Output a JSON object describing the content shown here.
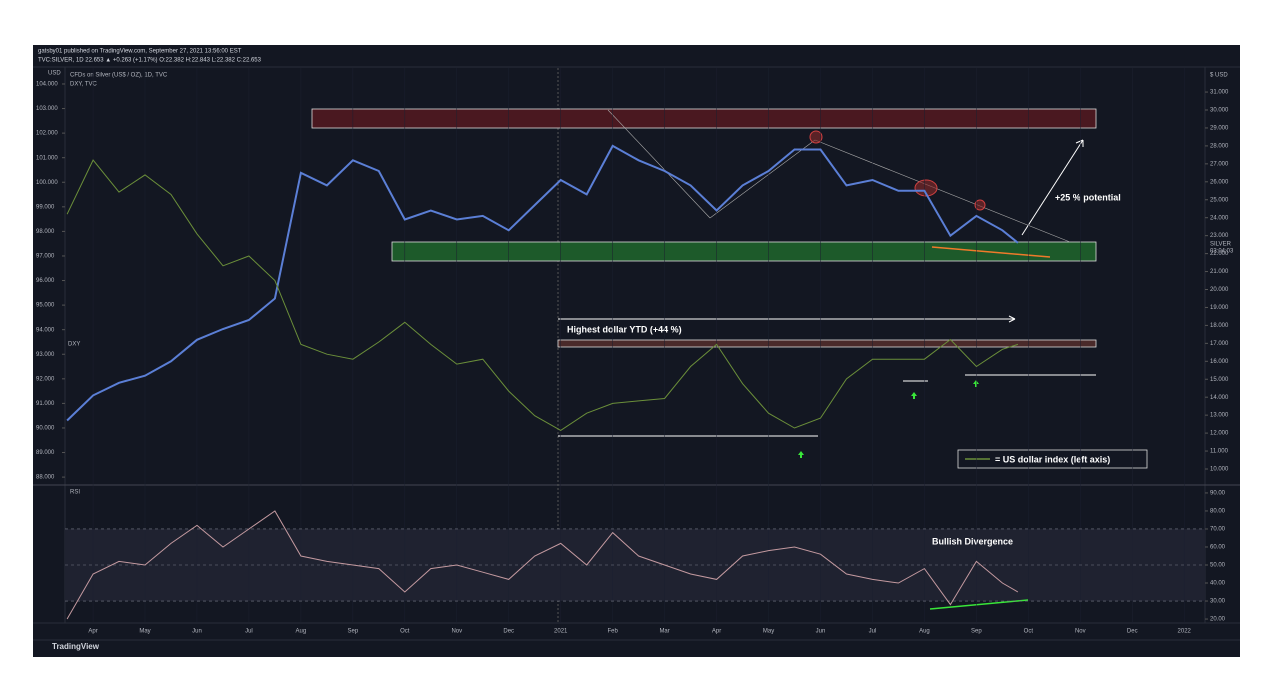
{
  "header": [
    "gatsby01 published on TradingView.com, September 27, 2021 13:56:00 EST",
    "TVC:SILVER, 1D 22.653 ▲ +0.263 (+1.17%) O:22.382 H:22.843 L:22.382 C:22.653"
  ],
  "footer": "TradingView",
  "chart_data": [
    {
      "type": "line",
      "subtitle": [
        "CFDs on Silver (US$ / OZ), 1D, TVC",
        "DXY, TVC"
      ],
      "ylabel": "USD",
      "y2label": "$ USD",
      "countdown": "03:04:03",
      "annotations": [
        "+25 % potential",
        "Highest dollar YTD (+44 %)",
        "= US dollar index (left axis)"
      ],
      "xlim": [
        -0.54,
        21.4
      ],
      "xticks": [
        {
          "value": 0,
          "label": "Apr"
        },
        {
          "value": 1,
          "label": "May"
        },
        {
          "value": 2,
          "label": "Jun"
        },
        {
          "value": 3,
          "label": "Jul"
        },
        {
          "value": 4,
          "label": "Aug"
        },
        {
          "value": 5,
          "label": "Sep"
        },
        {
          "value": 6,
          "label": "Oct"
        },
        {
          "value": 7,
          "label": "Nov"
        },
        {
          "value": 8,
          "label": "Dec"
        },
        {
          "value": 9,
          "label": "2021"
        },
        {
          "value": 10,
          "label": "Feb"
        },
        {
          "value": 11,
          "label": "Mar"
        },
        {
          "value": 12,
          "label": "Apr"
        },
        {
          "value": 13,
          "label": "May"
        },
        {
          "value": 14,
          "label": "Jun"
        },
        {
          "value": 15,
          "label": "Jul"
        },
        {
          "value": 16,
          "label": "Aug"
        },
        {
          "value": 17,
          "label": "Sep"
        },
        {
          "value": 18,
          "label": "Oct"
        },
        {
          "value": 19,
          "label": "Nov"
        },
        {
          "value": 20,
          "label": "Dec"
        },
        {
          "value": 21,
          "label": "2022"
        }
      ],
      "ylim": [
        87.76,
        104.65
      ],
      "yticks": [
        {
          "value": 104,
          "label": "104.000"
        },
        {
          "value": 103,
          "label": "103.000"
        },
        {
          "value": 102,
          "label": "102.000"
        },
        {
          "value": 101,
          "label": "101.000"
        },
        {
          "value": 100,
          "label": "100.000"
        },
        {
          "value": 99,
          "label": "99.000"
        },
        {
          "value": 98,
          "label": "98.000"
        },
        {
          "value": 97,
          "label": "97.000"
        },
        {
          "value": 96,
          "label": "96.000"
        },
        {
          "value": 95,
          "label": "95.000"
        },
        {
          "value": 94,
          "label": "94.000"
        },
        {
          "value": 93,
          "label": "93.000"
        },
        {
          "value": 92,
          "label": "92.000"
        },
        {
          "value": 91,
          "label": "91.000"
        },
        {
          "value": 90,
          "label": "90.000"
        },
        {
          "value": 89,
          "label": "89.000"
        },
        {
          "value": 88,
          "label": "88.000"
        }
      ],
      "y2lim": [
        9.22,
        32.34
      ],
      "y2ticks": [
        {
          "value": 31,
          "label": "31.000"
        },
        {
          "value": 30,
          "label": "30.000"
        },
        {
          "value": 29,
          "label": "29.000"
        },
        {
          "value": 28,
          "label": "28.000"
        },
        {
          "value": 27,
          "label": "27.000"
        },
        {
          "value": 26,
          "label": "26.000"
        },
        {
          "value": 25,
          "label": "25.000"
        },
        {
          "value": 24,
          "label": "24.000"
        },
        {
          "value": 23,
          "label": "23.000"
        },
        {
          "value": 22,
          "label": "22.000"
        },
        {
          "value": 21,
          "label": "21.000"
        },
        {
          "value": 20,
          "label": "20.000"
        },
        {
          "value": 19,
          "label": "19.000"
        },
        {
          "value": 18,
          "label": "18.000"
        },
        {
          "value": 17,
          "label": "17.000"
        },
        {
          "value": 16,
          "label": "16.000"
        },
        {
          "value": 15,
          "label": "15.000"
        },
        {
          "value": 14,
          "label": "14.000"
        },
        {
          "value": 13,
          "label": "13.000"
        },
        {
          "value": 12,
          "label": "12.000"
        },
        {
          "value": 11,
          "label": "11.000"
        },
        {
          "value": 10,
          "label": "10.000"
        }
      ],
      "x": [
        -0.5,
        0,
        0.5,
        1,
        1.5,
        2,
        2.5,
        3,
        3.5,
        4,
        4.5,
        5,
        5.5,
        6,
        6.5,
        7,
        7.5,
        8,
        8.5,
        9,
        9.5,
        10,
        10.5,
        11,
        11.5,
        12,
        12.5,
        13,
        13.5,
        14,
        14.5,
        15,
        15.5,
        16,
        16.5,
        17,
        17.5,
        17.8
      ],
      "series": [
        {
          "name": "SILVER",
          "color": "#5b7fd6",
          "axis": "y2",
          "values": [
            12.7,
            14.1,
            14.8,
            15.2,
            16.0,
            17.2,
            17.8,
            18.3,
            19.5,
            26.5,
            25.8,
            27.2,
            26.6,
            23.9,
            24.4,
            23.9,
            24.1,
            23.3,
            24.7,
            26.1,
            25.3,
            28.0,
            27.2,
            26.6,
            25.8,
            24.4,
            25.8,
            26.6,
            27.8,
            27.8,
            25.8,
            26.1,
            25.5,
            25.5,
            23.0,
            24.1,
            23.3,
            22.6
          ]
        },
        {
          "name": "DXY",
          "color": "#6b8f3a",
          "axis": "y",
          "values": [
            98.7,
            100.9,
            99.6,
            100.3,
            99.5,
            97.9,
            96.6,
            97.0,
            96.0,
            93.4,
            93.0,
            92.8,
            93.5,
            94.3,
            93.4,
            92.6,
            92.8,
            91.5,
            90.5,
            89.9,
            90.6,
            91.0,
            91.1,
            91.2,
            92.5,
            93.4,
            91.8,
            90.6,
            90.0,
            90.4,
            92.0,
            92.8,
            92.8,
            92.8,
            93.6,
            92.5,
            93.2,
            93.4
          ]
        }
      ]
    },
    {
      "type": "line",
      "title": "RSI",
      "annotations": [
        "Bullish Divergence"
      ],
      "ylim": [
        17.8,
        93.3
      ],
      "yticks": [
        {
          "value": 90,
          "label": "90.00"
        },
        {
          "value": 80,
          "label": "80.00"
        },
        {
          "value": 70,
          "label": "70.00"
        },
        {
          "value": 60,
          "label": "60.00"
        },
        {
          "value": 50,
          "label": "50.00"
        },
        {
          "value": 40,
          "label": "40.00"
        },
        {
          "value": 30,
          "label": "30.00"
        },
        {
          "value": 20,
          "label": "20.00"
        }
      ],
      "levels": [
        70,
        50,
        30
      ],
      "series": [
        {
          "name": "RSI",
          "color": "#c49aa0",
          "values": [
            20,
            45,
            52,
            50,
            62,
            72,
            60,
            70,
            80,
            55,
            52,
            50,
            48,
            35,
            48,
            50,
            46,
            42,
            55,
            62,
            50,
            68,
            55,
            50,
            45,
            42,
            55,
            58,
            60,
            56,
            45,
            42,
            40,
            48,
            28,
            52,
            40,
            35
          ]
        }
      ]
    }
  ]
}
